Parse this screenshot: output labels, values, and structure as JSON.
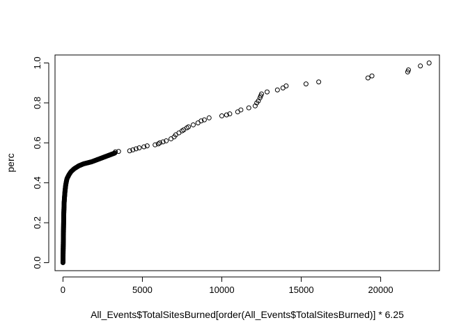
{
  "chart_data": {
    "type": "scatter",
    "title": "",
    "xlabel": "All_Events$TotalSitesBurned[order(All_Events$TotalSitesBurned)] * 6.25",
    "ylabel": "perc",
    "xlim": [
      -500,
      23700
    ],
    "ylim": [
      -0.04,
      1.04
    ],
    "x_ticks": [
      0,
      5000,
      10000,
      15000,
      20000
    ],
    "x_tick_labels": [
      "0",
      "5000",
      "10000",
      "15000",
      "20000"
    ],
    "y_ticks": [
      0.0,
      0.2,
      0.4,
      0.6,
      0.8,
      1.0
    ],
    "y_tick_labels": [
      "0.0",
      "0.2",
      "0.4",
      "0.6",
      "0.8",
      "1.0"
    ],
    "grid": false,
    "legend": "none",
    "marker": "open-circle",
    "curve_points": [
      [
        0,
        0.0
      ],
      [
        6.25,
        0.03
      ],
      [
        12.5,
        0.06
      ],
      [
        18.75,
        0.09
      ],
      [
        25,
        0.12
      ],
      [
        31.25,
        0.15
      ],
      [
        37.5,
        0.18
      ],
      [
        43.75,
        0.21
      ],
      [
        50,
        0.24
      ],
      [
        62.5,
        0.27
      ],
      [
        75,
        0.3
      ],
      [
        100,
        0.33
      ],
      [
        131.25,
        0.36
      ],
      [
        175,
        0.39
      ],
      [
        250,
        0.42
      ],
      [
        375,
        0.44
      ],
      [
        500,
        0.455
      ],
      [
        700,
        0.47
      ],
      [
        1000,
        0.485
      ],
      [
        1300,
        0.495
      ],
      [
        1800,
        0.505
      ],
      [
        2300,
        0.52
      ],
      [
        2800,
        0.535
      ],
      [
        3300,
        0.55
      ]
    ],
    "points": [
      {
        "x": 3300,
        "y": 0.555
      },
      {
        "x": 3500,
        "y": 0.557
      },
      {
        "x": 4200,
        "y": 0.56
      },
      {
        "x": 4400,
        "y": 0.565
      },
      {
        "x": 4600,
        "y": 0.57
      },
      {
        "x": 4800,
        "y": 0.575
      },
      {
        "x": 5100,
        "y": 0.58
      },
      {
        "x": 5300,
        "y": 0.585
      },
      {
        "x": 5800,
        "y": 0.59
      },
      {
        "x": 6000,
        "y": 0.595
      },
      {
        "x": 6100,
        "y": 0.6
      },
      {
        "x": 6300,
        "y": 0.605
      },
      {
        "x": 6500,
        "y": 0.61
      },
      {
        "x": 6800,
        "y": 0.62
      },
      {
        "x": 7000,
        "y": 0.63
      },
      {
        "x": 7100,
        "y": 0.64
      },
      {
        "x": 7300,
        "y": 0.65
      },
      {
        "x": 7500,
        "y": 0.66
      },
      {
        "x": 7600,
        "y": 0.665
      },
      {
        "x": 7800,
        "y": 0.675
      },
      {
        "x": 7900,
        "y": 0.68
      },
      {
        "x": 8200,
        "y": 0.69
      },
      {
        "x": 8500,
        "y": 0.7
      },
      {
        "x": 8700,
        "y": 0.71
      },
      {
        "x": 8900,
        "y": 0.715
      },
      {
        "x": 9200,
        "y": 0.725
      },
      {
        "x": 10000,
        "y": 0.735
      },
      {
        "x": 10300,
        "y": 0.74
      },
      {
        "x": 10500,
        "y": 0.745
      },
      {
        "x": 11000,
        "y": 0.755
      },
      {
        "x": 11200,
        "y": 0.765
      },
      {
        "x": 11700,
        "y": 0.775
      },
      {
        "x": 12100,
        "y": 0.785
      },
      {
        "x": 12200,
        "y": 0.8
      },
      {
        "x": 12300,
        "y": 0.81
      },
      {
        "x": 12400,
        "y": 0.825
      },
      {
        "x": 12450,
        "y": 0.835
      },
      {
        "x": 12500,
        "y": 0.845
      },
      {
        "x": 12850,
        "y": 0.855
      },
      {
        "x": 13500,
        "y": 0.865
      },
      {
        "x": 13850,
        "y": 0.875
      },
      {
        "x": 14050,
        "y": 0.885
      },
      {
        "x": 15300,
        "y": 0.895
      },
      {
        "x": 16100,
        "y": 0.905
      },
      {
        "x": 19200,
        "y": 0.925
      },
      {
        "x": 19450,
        "y": 0.935
      },
      {
        "x": 21700,
        "y": 0.955
      },
      {
        "x": 21750,
        "y": 0.965
      },
      {
        "x": 22500,
        "y": 0.985
      },
      {
        "x": 23050,
        "y": 1.0
      }
    ]
  }
}
